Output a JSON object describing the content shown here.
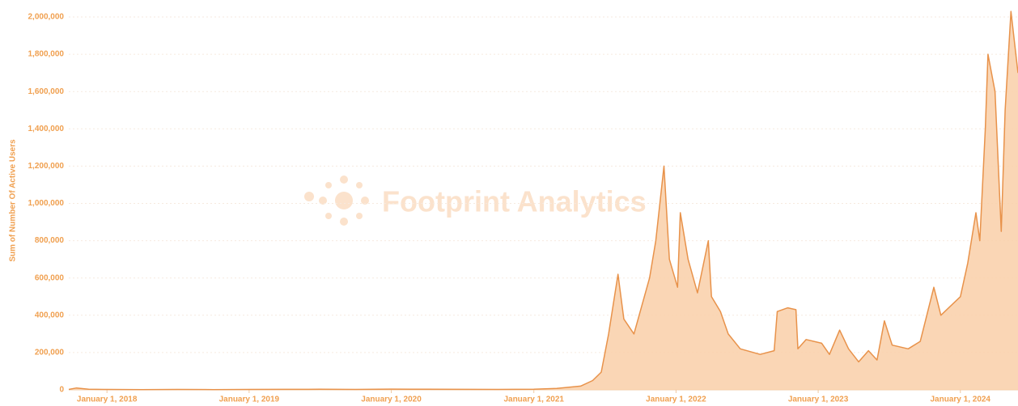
{
  "chart_data": {
    "type": "area",
    "ylabel": "Sum of Number Of Active Users",
    "watermark": "Footprint Analytics",
    "x": [
      "2017-09-25",
      "2017-10-15",
      "2017-11-15",
      "2018-01-01",
      "2018-04-01",
      "2018-07-01",
      "2018-10-01",
      "2019-01-01",
      "2019-04-01",
      "2019-07-01",
      "2019-10-01",
      "2020-01-01",
      "2020-04-01",
      "2020-07-01",
      "2020-10-01",
      "2021-01-01",
      "2021-03-01",
      "2021-05-01",
      "2021-06-01",
      "2021-06-23",
      "2021-07-12",
      "2021-08-05",
      "2021-08-20",
      "2021-09-15",
      "2021-10-25",
      "2021-11-10",
      "2021-12-01",
      "2021-12-15",
      "2022-01-05",
      "2022-01-12",
      "2022-02-01",
      "2022-02-25",
      "2022-03-25",
      "2022-04-02",
      "2022-04-25",
      "2022-05-15",
      "2022-06-15",
      "2022-08-05",
      "2022-09-10",
      "2022-09-18",
      "2022-10-15",
      "2022-11-05",
      "2022-11-10",
      "2022-12-01",
      "2023-01-10",
      "2023-01-30",
      "2023-02-25",
      "2023-03-20",
      "2023-04-15",
      "2023-05-10",
      "2023-06-01",
      "2023-06-20",
      "2023-07-10",
      "2023-08-20",
      "2023-09-20",
      "2023-10-25",
      "2023-11-12",
      "2024-01-01",
      "2024-01-20",
      "2024-02-10",
      "2024-02-20",
      "2024-03-05",
      "2024-03-12",
      "2024-03-30",
      "2024-04-15",
      "2024-04-25",
      "2024-05-10",
      "2024-05-28"
    ],
    "values": [
      2000,
      10000,
      3000,
      2000,
      1500,
      2000,
      1500,
      2000,
      2500,
      3000,
      2000,
      4000,
      3000,
      2500,
      2000,
      3000,
      8000,
      20000,
      50000,
      95000,
      300000,
      620000,
      380000,
      300000,
      600000,
      800000,
      1200000,
      700000,
      550000,
      950000,
      700000,
      520000,
      800000,
      500000,
      420000,
      300000,
      220000,
      190000,
      210000,
      420000,
      440000,
      430000,
      220000,
      270000,
      250000,
      190000,
      320000,
      220000,
      150000,
      210000,
      160000,
      370000,
      240000,
      220000,
      260000,
      550000,
      400000,
      500000,
      680000,
      950000,
      800000,
      1400000,
      1800000,
      1600000,
      850000,
      1500000,
      2030000,
      1700000
    ],
    "color": "#e8924a",
    "fill": "#f9cfa8",
    "xlim": [
      "2017-09-25",
      "2024-05-28"
    ],
    "xticks": [
      {
        "value": "2018-01-01",
        "label": "January 1, 2018"
      },
      {
        "value": "2019-01-01",
        "label": "January 1, 2019"
      },
      {
        "value": "2020-01-01",
        "label": "January 1, 2020"
      },
      {
        "value": "2021-01-01",
        "label": "January 1, 2021"
      },
      {
        "value": "2022-01-01",
        "label": "January 1, 2022"
      },
      {
        "value": "2023-01-01",
        "label": "January 1, 2023"
      },
      {
        "value": "2024-01-01",
        "label": "January 1, 2024"
      }
    ],
    "ylim": [
      0,
      2000000
    ],
    "yticks": [
      0,
      {
        "value": 200000,
        "label": "200,000"
      },
      {
        "value": 400000,
        "label": "400,000"
      },
      {
        "value": 600000,
        "label": "600,000"
      },
      {
        "value": 800000,
        "label": "800,000"
      },
      {
        "value": 1000000,
        "label": "1,000,000"
      },
      {
        "value": 1200000,
        "label": "1,200,000"
      },
      {
        "value": 1400000,
        "label": "1,400,000"
      },
      {
        "value": 1600000,
        "label": "1,600,000"
      },
      {
        "value": 1800000,
        "label": "1,800,000"
      },
      {
        "value": 2000000,
        "label": "2,000,000"
      }
    ],
    "grid": true
  }
}
